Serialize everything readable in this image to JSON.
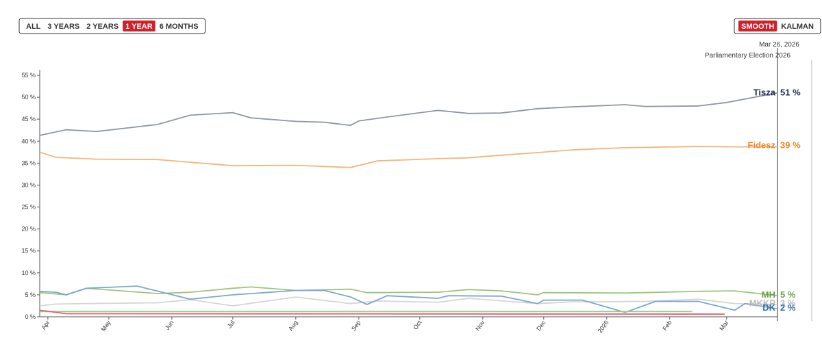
{
  "controls": {
    "ranges": [
      "ALL",
      "3 YEARS",
      "2 YEARS",
      "1 YEAR",
      "6 MONTHS"
    ],
    "active_range": 3,
    "methods": [
      "SMOOTH",
      "KALMAN"
    ],
    "active_method": 0
  },
  "chart_data": {
    "type": "line",
    "marker_date": "Mar 26, 2026",
    "marker_label": "Parliamentary Election 2026",
    "marker_x": "2026-03-26",
    "xlim": [
      "2025-03-28",
      "2026-03-26"
    ],
    "xticks": [
      {
        "value": "2025-04-01",
        "label": "Apr"
      },
      {
        "value": "2025-05-01",
        "label": "May"
      },
      {
        "value": "2025-06-01",
        "label": "Jun"
      },
      {
        "value": "2025-07-01",
        "label": "Jul"
      },
      {
        "value": "2025-08-01",
        "label": "Aug"
      },
      {
        "value": "2025-09-01",
        "label": "Sep"
      },
      {
        "value": "2025-10-01",
        "label": "Oct"
      },
      {
        "value": "2025-11-01",
        "label": "Nov"
      },
      {
        "value": "2025-12-01",
        "label": "Dec"
      },
      {
        "value": "2026-01-01",
        "label": "2026"
      },
      {
        "value": "2026-02-01",
        "label": "Feb"
      },
      {
        "value": "2026-03-01",
        "label": "Mar"
      }
    ],
    "ylim": [
      0,
      55
    ],
    "yticks": [
      {
        "value": 0,
        "label": "0 %"
      },
      {
        "value": 5,
        "label": "5 %"
      },
      {
        "value": 10,
        "label": "10 %"
      },
      {
        "value": 15,
        "label": "15 %"
      },
      {
        "value": 20,
        "label": "20 %"
      },
      {
        "value": 25,
        "label": "25 %"
      },
      {
        "value": 30,
        "label": "30 %"
      },
      {
        "value": 35,
        "label": "35 %"
      },
      {
        "value": 40,
        "label": "40 %"
      },
      {
        "value": 45,
        "label": "45 %"
      },
      {
        "value": 50,
        "label": "50 %"
      },
      {
        "value": 55,
        "label": "55 %"
      }
    ],
    "series": [
      {
        "name": "Tisza",
        "color": "#8e96a6",
        "label_color": "#1f2d4f",
        "last": 51,
        "last_label": "51 %",
        "x": [
          "2025-03-28",
          "2025-04-10",
          "2025-04-25",
          "2025-05-25",
          "2025-06-10",
          "2025-07-01",
          "2025-07-10",
          "2025-08-01",
          "2025-08-15",
          "2025-08-28",
          "2025-09-01",
          "2025-09-15",
          "2025-10-10",
          "2025-10-25",
          "2025-11-10",
          "2025-11-28",
          "2025-12-15",
          "2026-01-10",
          "2026-01-20",
          "2026-02-15",
          "2026-03-01",
          "2026-03-26"
        ],
        "values": [
          41.3,
          42.6,
          42.2,
          43.8,
          45.9,
          46.5,
          45.3,
          44.5,
          44.3,
          43.6,
          44.6,
          45.5,
          47.0,
          46.3,
          46.4,
          47.4,
          47.8,
          48.3,
          47.9,
          48.0,
          48.8,
          51
        ]
      },
      {
        "name": "Fidesz",
        "color": "#f5b47a",
        "label_color": "#e8862c",
        "last": 39,
        "last_label": "39 %",
        "x": [
          "2025-03-28",
          "2025-04-05",
          "2025-04-25",
          "2025-05-25",
          "2025-06-10",
          "2025-07-01",
          "2025-08-01",
          "2025-08-28",
          "2025-09-10",
          "2025-10-10",
          "2025-10-25",
          "2025-11-10",
          "2025-11-28",
          "2025-12-15",
          "2026-01-10",
          "2026-02-15",
          "2026-03-05",
          "2026-03-26"
        ],
        "values": [
          37.5,
          36.3,
          35.9,
          35.8,
          35.2,
          34.4,
          34.5,
          34.0,
          35.5,
          36.0,
          36.2,
          36.8,
          37.4,
          38.0,
          38.5,
          38.8,
          38.7,
          38.7
        ]
      },
      {
        "name": "MH",
        "color": "#9cc47e",
        "label_color": "#6a9f45",
        "last": 5,
        "last_label": "5 %",
        "x": [
          "2025-03-28",
          "2025-04-10",
          "2025-04-20",
          "2025-05-25",
          "2025-06-10",
          "2025-07-01",
          "2025-07-10",
          "2025-08-01",
          "2025-08-28",
          "2025-09-05",
          "2025-10-10",
          "2025-10-25",
          "2025-11-10",
          "2025-11-28",
          "2025-12-01",
          "2026-01-10",
          "2026-02-15",
          "2026-03-05",
          "2026-03-26"
        ],
        "values": [
          5.5,
          5.0,
          6.5,
          5.3,
          5.6,
          6.5,
          6.8,
          6.0,
          6.3,
          5.5,
          5.6,
          6.2,
          5.9,
          5.0,
          5.5,
          5.4,
          5.8,
          5.9,
          4.8
        ]
      },
      {
        "name": "MKKP",
        "color": "#d4d4d4",
        "label_color": "#b8b8b8",
        "last": 3,
        "last_label": "3 %",
        "x": [
          "2025-03-28",
          "2025-04-05",
          "2025-04-20",
          "2025-05-25",
          "2025-06-10",
          "2025-07-01",
          "2025-08-01",
          "2025-08-28",
          "2025-09-10",
          "2025-10-10",
          "2025-10-25",
          "2025-11-28",
          "2025-12-15",
          "2026-01-20",
          "2026-02-15",
          "2026-03-05",
          "2026-03-26"
        ],
        "values": [
          2.5,
          2.9,
          3.0,
          3.2,
          3.9,
          2.5,
          4.5,
          3.0,
          3.6,
          3.3,
          4.2,
          3.0,
          3.4,
          3.5,
          4.0,
          3.0,
          2.8
        ]
      },
      {
        "name": "DK",
        "color": "#7aa7cc",
        "label_color": "#2a6fa8",
        "last": 2,
        "last_label": "2 %",
        "x": [
          "2025-03-28",
          "2025-04-05",
          "2025-04-10",
          "2025-04-20",
          "2025-05-15",
          "2025-06-10",
          "2025-07-01",
          "2025-08-01",
          "2025-08-15",
          "2025-08-28",
          "2025-09-05",
          "2025-09-15",
          "2025-10-10",
          "2025-10-15",
          "2025-11-10",
          "2025-11-28",
          "2025-12-01",
          "2025-12-20",
          "2026-01-10",
          "2026-01-25",
          "2026-02-15",
          "2026-03-05",
          "2026-03-10",
          "2026-03-26"
        ],
        "values": [
          5.8,
          5.6,
          5.0,
          6.5,
          7.0,
          4.0,
          5.0,
          6.0,
          6.0,
          4.5,
          2.8,
          4.8,
          4.2,
          4.8,
          4.7,
          3.0,
          3.8,
          3.8,
          1.0,
          3.5,
          3.5,
          1.5,
          3.0,
          1.8
        ]
      },
      {
        "color": "#8fd08f",
        "x": [
          "2025-03-28",
          "2026-02-12"
        ],
        "values": [
          1.2,
          1.2
        ]
      },
      {
        "color": "#e06070",
        "x": [
          "2025-03-28",
          "2025-04-10",
          "2026-02-28"
        ],
        "values": [
          1.5,
          0.7,
          0.6
        ]
      }
    ]
  }
}
